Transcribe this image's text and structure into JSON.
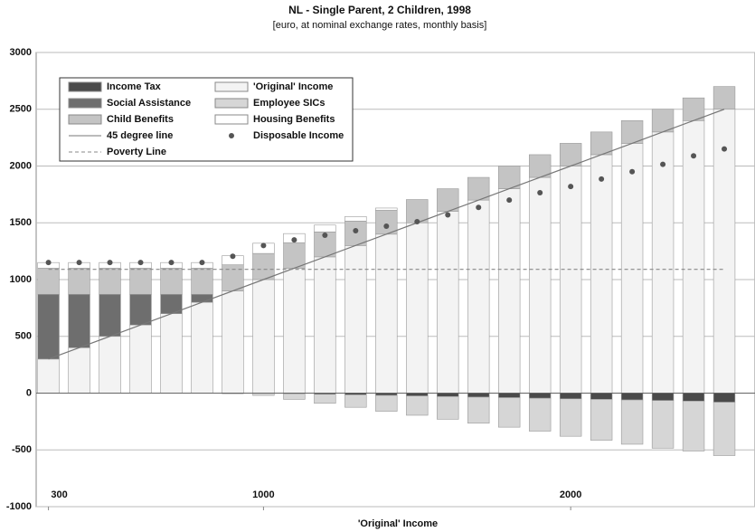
{
  "chart_data": {
    "type": "bar",
    "title": "NL - Single Parent, 2 Children, 1998",
    "subtitle": "[euro, at nominal exchange rates, monthly basis]",
    "x_label": "'Original' Income",
    "x": [
      300,
      400,
      500,
      600,
      700,
      800,
      900,
      1000,
      1100,
      1200,
      1300,
      1400,
      1500,
      1600,
      1700,
      1800,
      1900,
      2000,
      2100,
      2200,
      2300,
      2400,
      2500
    ],
    "xlim": [
      260,
      2600
    ],
    "xticks": [
      300,
      1000,
      2000
    ],
    "ylim": [
      -1000,
      3000
    ],
    "yticks": [
      -1000,
      -500,
      0,
      500,
      1000,
      1500,
      2000,
      2500,
      3000
    ],
    "grid": true,
    "series": [
      {
        "name": "Income Tax",
        "style": "bar",
        "color": "#4a4a4a",
        "values": [
          0,
          0,
          0,
          0,
          0,
          0,
          0,
          0,
          -5,
          -10,
          -15,
          -20,
          -25,
          -30,
          -35,
          -40,
          -45,
          -50,
          -55,
          -60,
          -65,
          -70,
          -80
        ]
      },
      {
        "name": "'Original' Income",
        "style": "bar",
        "color": "#f3f3f3",
        "values": [
          300,
          400,
          500,
          600,
          700,
          800,
          900,
          1000,
          1100,
          1200,
          1300,
          1400,
          1500,
          1600,
          1700,
          1800,
          1900,
          2000,
          2100,
          2200,
          2300,
          2400,
          2500
        ]
      },
      {
        "name": "Social Assistance",
        "style": "bar",
        "color": "#6e6e6e",
        "values": [
          570,
          470,
          370,
          270,
          170,
          70,
          0,
          0,
          0,
          0,
          0,
          0,
          0,
          0,
          0,
          0,
          0,
          0,
          0,
          0,
          0,
          0,
          0
        ]
      },
      {
        "name": "Employee SICs",
        "style": "bar",
        "color": "#d6d6d6",
        "values": [
          0,
          0,
          0,
          0,
          0,
          0,
          -5,
          -20,
          -50,
          -80,
          -110,
          -140,
          -170,
          -200,
          -230,
          -260,
          -290,
          -330,
          -360,
          -390,
          -420,
          -440,
          -470
        ]
      },
      {
        "name": "Child Benefits",
        "style": "bar",
        "color": "#c4c4c4",
        "values": [
          230,
          230,
          230,
          230,
          230,
          230,
          230,
          230,
          225,
          220,
          215,
          210,
          205,
          200,
          200,
          200,
          200,
          200,
          200,
          200,
          200,
          200,
          200
        ]
      },
      {
        "name": "Housing Benefits",
        "style": "bar",
        "color": "#ffffff",
        "values": [
          50,
          50,
          50,
          50,
          50,
          50,
          80,
          90,
          80,
          60,
          40,
          20,
          0,
          0,
          0,
          0,
          0,
          0,
          0,
          0,
          0,
          0,
          0
        ]
      },
      {
        "name": "45 degree line",
        "style": "line",
        "color": "#777777",
        "values": [
          300,
          400,
          500,
          600,
          700,
          800,
          900,
          1000,
          1100,
          1200,
          1300,
          1400,
          1500,
          1600,
          1700,
          1800,
          1900,
          2000,
          2100,
          2200,
          2300,
          2400,
          2500
        ]
      },
      {
        "name": "Disposable Income",
        "style": "dots",
        "color": "#555555",
        "values": [
          1150,
          1150,
          1150,
          1150,
          1150,
          1150,
          1205,
          1300,
          1350,
          1390,
          1430,
          1470,
          1510,
          1570,
          1635,
          1700,
          1765,
          1820,
          1885,
          1950,
          2015,
          2090,
          2150
        ]
      },
      {
        "name": "Poverty Line",
        "style": "dashed",
        "color": "#888888",
        "values": [
          1090,
          1090,
          1090,
          1090,
          1090,
          1090,
          1090,
          1090,
          1090,
          1090,
          1090,
          1090,
          1090,
          1090,
          1090,
          1090,
          1090,
          1090,
          1090,
          1090,
          1090,
          1090,
          1090
        ]
      }
    ]
  }
}
